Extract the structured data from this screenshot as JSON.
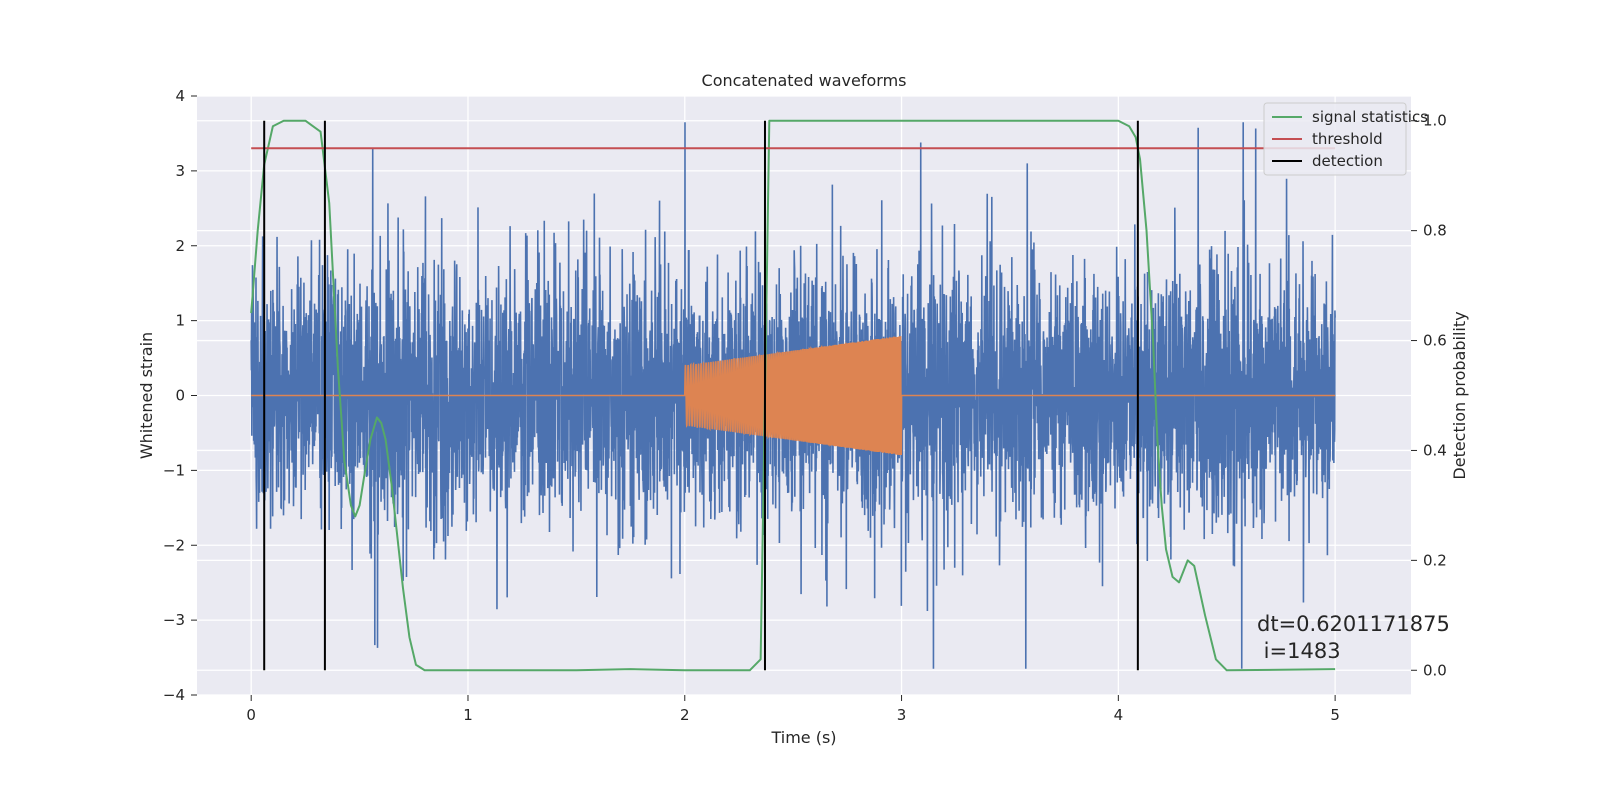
{
  "chart_data": {
    "type": "line",
    "title": "Concatenated waveforms",
    "xlabel": "Time (s)",
    "ylabel": "Whitened strain",
    "y2label": "Detection probability",
    "xlim": [
      -0.25,
      5.35
    ],
    "ylim": [
      -4,
      4
    ],
    "y2lim": [
      -0.045,
      1.045
    ],
    "xticks": [
      0,
      1,
      2,
      3,
      4,
      5
    ],
    "yticks": [
      -4,
      -3,
      -2,
      -1,
      0,
      1,
      2,
      3,
      4
    ],
    "y2ticks": [
      0.0,
      0.2,
      0.4,
      0.6,
      0.8,
      1.0
    ],
    "xtick_labels": [
      "0",
      "1",
      "2",
      "3",
      "4",
      "5"
    ],
    "ytick_labels": [
      "−4",
      "−3",
      "−2",
      "−1",
      "0",
      "1",
      "2",
      "3",
      "4"
    ],
    "y2tick_labels": [
      "0.0",
      "0.2",
      "0.4",
      "0.6",
      "0.8",
      "1.0"
    ],
    "grid": true,
    "legend_position": "top-right",
    "background": "#eaeaf2",
    "series": [
      {
        "name": "",
        "axis": "left",
        "kind": "noise",
        "color": "#4c72b0",
        "x_range": [
          0,
          5
        ],
        "bulk_amplitude": 1.0,
        "max": 3.65,
        "min": -3.65
      },
      {
        "name": "",
        "axis": "left",
        "kind": "chirp",
        "color": "#dd8452",
        "x_range": [
          0,
          5
        ],
        "chirp_range": [
          2.0,
          3.0
        ],
        "envelope_start": 0.4,
        "envelope_end": 0.8
      },
      {
        "name": "signal statistics",
        "axis": "right",
        "color": "#55a868",
        "x": [
          0.0,
          0.03,
          0.06,
          0.1,
          0.15,
          0.25,
          0.32,
          0.36,
          0.4,
          0.43,
          0.46,
          0.48,
          0.5,
          0.52,
          0.55,
          0.58,
          0.6,
          0.62,
          0.65,
          0.7,
          0.73,
          0.76,
          0.8,
          1.0,
          1.5,
          1.75,
          2.0,
          2.3,
          2.35,
          2.37,
          2.39,
          2.45,
          3.0,
          3.5,
          4.0,
          4.05,
          4.08,
          4.1,
          4.13,
          4.16,
          4.18,
          4.2,
          4.22,
          4.25,
          4.28,
          4.3,
          4.32,
          4.35,
          4.4,
          4.45,
          4.5,
          5.0
        ],
        "y": [
          0.65,
          0.8,
          0.92,
          0.99,
          1.0,
          1.0,
          0.98,
          0.85,
          0.55,
          0.38,
          0.3,
          0.28,
          0.3,
          0.35,
          0.42,
          0.46,
          0.45,
          0.42,
          0.33,
          0.15,
          0.06,
          0.01,
          0.0,
          0.0,
          0.0,
          0.002,
          0.0,
          0.0,
          0.02,
          0.5,
          1.0,
          1.0,
          1.0,
          1.0,
          1.0,
          0.99,
          0.97,
          0.93,
          0.8,
          0.6,
          0.42,
          0.3,
          0.22,
          0.17,
          0.16,
          0.18,
          0.2,
          0.19,
          0.1,
          0.02,
          0.0,
          0.002
        ]
      },
      {
        "name": "threshold",
        "axis": "right",
        "color": "#c44e52",
        "x": [
          0.0,
          5.0
        ],
        "y": [
          0.95,
          0.95
        ]
      }
    ],
    "detection": {
      "name": "detection",
      "color": "#000000",
      "x": [
        0.06,
        0.34,
        2.37,
        4.09
      ]
    },
    "annotation": {
      "line1": "dt=0.6201171875",
      "line2": " i=1483"
    }
  }
}
